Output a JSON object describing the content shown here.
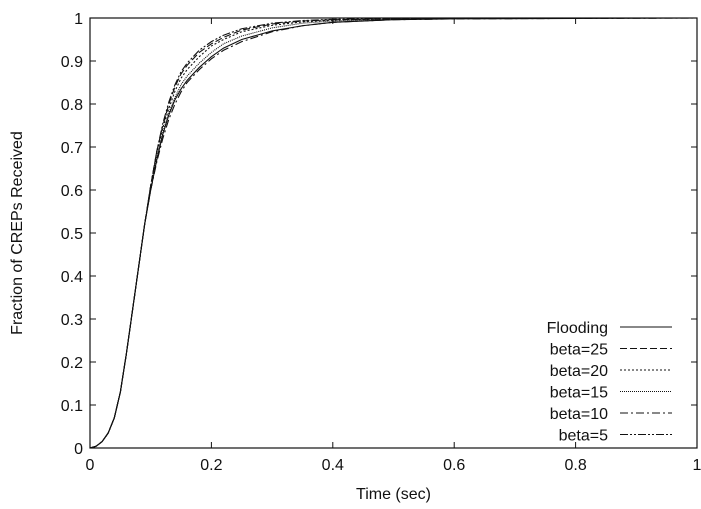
{
  "chart_data": {
    "type": "line",
    "title": "",
    "xlabel": "Time (sec)",
    "ylabel": "Fraction of CREPs Received",
    "xlim": [
      0,
      1
    ],
    "ylim": [
      0,
      1
    ],
    "xticks": [
      0,
      0.2,
      0.4,
      0.6,
      0.8,
      1
    ],
    "yticks": [
      0,
      0.1,
      0.2,
      0.3,
      0.4,
      0.5,
      0.6,
      0.7,
      0.8,
      0.9,
      1
    ],
    "xtick_labels": [
      "0",
      "0.2",
      "0.4",
      "0.6",
      "0.8",
      "1"
    ],
    "ytick_labels": [
      "0",
      "0.1",
      "0.2",
      "0.3",
      "0.4",
      "0.5",
      "0.6",
      "0.7",
      "0.8",
      "0.9",
      "1"
    ],
    "grid": false,
    "legend_position": "bottom-right",
    "series": [
      {
        "name": "Flooding",
        "dash": "solid",
        "x": [
          0,
          0.01,
          0.02,
          0.03,
          0.04,
          0.05,
          0.06,
          0.07,
          0.08,
          0.09,
          0.1,
          0.11,
          0.12,
          0.13,
          0.14,
          0.15,
          0.16,
          0.18,
          0.2,
          0.22,
          0.25,
          0.3,
          0.35,
          0.4,
          0.5,
          0.6,
          0.8,
          1.0
        ],
        "y": [
          0,
          0.004,
          0.015,
          0.035,
          0.07,
          0.13,
          0.22,
          0.32,
          0.42,
          0.52,
          0.6,
          0.67,
          0.73,
          0.775,
          0.81,
          0.835,
          0.855,
          0.885,
          0.91,
          0.93,
          0.95,
          0.97,
          0.982,
          0.99,
          0.996,
          0.998,
          0.999,
          1.0
        ]
      },
      {
        "name": "beta=25",
        "dash": "dashed",
        "x": [
          0,
          0.01,
          0.02,
          0.03,
          0.04,
          0.05,
          0.06,
          0.07,
          0.08,
          0.09,
          0.1,
          0.11,
          0.12,
          0.13,
          0.14,
          0.15,
          0.16,
          0.18,
          0.2,
          0.22,
          0.25,
          0.3,
          0.35,
          0.4,
          0.5,
          0.6,
          0.8,
          1.0
        ],
        "y": [
          0,
          0.004,
          0.015,
          0.035,
          0.07,
          0.13,
          0.22,
          0.32,
          0.42,
          0.52,
          0.61,
          0.69,
          0.75,
          0.8,
          0.84,
          0.87,
          0.89,
          0.92,
          0.94,
          0.955,
          0.972,
          0.986,
          0.993,
          0.996,
          0.998,
          0.999,
          1.0,
          1.0
        ]
      },
      {
        "name": "beta=20",
        "dash": "dotted",
        "x": [
          0,
          0.01,
          0.02,
          0.03,
          0.04,
          0.05,
          0.06,
          0.07,
          0.08,
          0.09,
          0.1,
          0.11,
          0.12,
          0.13,
          0.14,
          0.15,
          0.16,
          0.18,
          0.2,
          0.22,
          0.25,
          0.3,
          0.35,
          0.4,
          0.5,
          0.6,
          0.8,
          1.0
        ],
        "y": [
          0,
          0.004,
          0.015,
          0.035,
          0.07,
          0.13,
          0.22,
          0.32,
          0.42,
          0.52,
          0.61,
          0.685,
          0.745,
          0.79,
          0.83,
          0.86,
          0.88,
          0.91,
          0.935,
          0.95,
          0.968,
          0.983,
          0.991,
          0.995,
          0.998,
          0.999,
          1.0,
          1.0
        ]
      },
      {
        "name": "beta=15",
        "dash": "fine",
        "x": [
          0,
          0.01,
          0.02,
          0.03,
          0.04,
          0.05,
          0.06,
          0.07,
          0.08,
          0.09,
          0.1,
          0.11,
          0.12,
          0.13,
          0.14,
          0.15,
          0.16,
          0.18,
          0.2,
          0.22,
          0.25,
          0.3,
          0.35,
          0.4,
          0.5,
          0.6,
          0.8,
          1.0
        ],
        "y": [
          0,
          0.004,
          0.015,
          0.035,
          0.07,
          0.13,
          0.22,
          0.32,
          0.42,
          0.52,
          0.6,
          0.675,
          0.735,
          0.78,
          0.815,
          0.845,
          0.865,
          0.895,
          0.92,
          0.94,
          0.958,
          0.977,
          0.988,
          0.993,
          0.997,
          0.999,
          1.0,
          1.0
        ]
      },
      {
        "name": "beta=10",
        "dash": "dashdot",
        "x": [
          0,
          0.01,
          0.02,
          0.03,
          0.04,
          0.05,
          0.06,
          0.07,
          0.08,
          0.09,
          0.1,
          0.11,
          0.12,
          0.13,
          0.14,
          0.15,
          0.16,
          0.18,
          0.2,
          0.22,
          0.25,
          0.3,
          0.35,
          0.4,
          0.5,
          0.6,
          0.8,
          1.0
        ],
        "y": [
          0,
          0.004,
          0.015,
          0.035,
          0.07,
          0.13,
          0.22,
          0.32,
          0.42,
          0.52,
          0.6,
          0.665,
          0.72,
          0.765,
          0.8,
          0.828,
          0.85,
          0.88,
          0.905,
          0.925,
          0.945,
          0.968,
          0.982,
          0.99,
          0.996,
          0.998,
          0.999,
          1.0
        ]
      },
      {
        "name": "beta=5",
        "dash": "dashdotdot",
        "x": [
          0,
          0.01,
          0.02,
          0.03,
          0.04,
          0.05,
          0.06,
          0.07,
          0.08,
          0.09,
          0.1,
          0.11,
          0.12,
          0.13,
          0.14,
          0.15,
          0.16,
          0.18,
          0.2,
          0.22,
          0.25,
          0.3,
          0.35,
          0.4,
          0.5,
          0.6,
          0.8,
          1.0
        ],
        "y": [
          0,
          0.004,
          0.015,
          0.035,
          0.07,
          0.13,
          0.22,
          0.32,
          0.42,
          0.52,
          0.61,
          0.69,
          0.755,
          0.805,
          0.845,
          0.875,
          0.895,
          0.925,
          0.945,
          0.96,
          0.975,
          0.988,
          0.994,
          0.997,
          0.999,
          1.0,
          1.0,
          1.0
        ]
      }
    ]
  }
}
